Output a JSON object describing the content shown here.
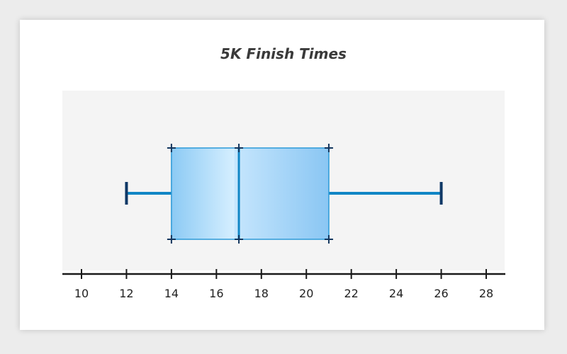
{
  "chart_data": {
    "type": "boxplot",
    "title": "5K Finish Times",
    "xlabel": "",
    "ylabel": "",
    "xlim": [
      10,
      28
    ],
    "ticks": [
      10,
      12,
      14,
      16,
      18,
      20,
      22,
      24,
      26,
      28
    ],
    "tick_labels": [
      "10",
      "12",
      "14",
      "16",
      "18",
      "20",
      "22",
      "24",
      "26",
      "28"
    ],
    "summary": {
      "min": 12,
      "q1": 14,
      "median": 17,
      "q3": 21,
      "max": 26
    },
    "grid": false,
    "legend": "none",
    "colors": {
      "box_fill": "#a9d4f5",
      "box_stroke": "#2b9ad8",
      "whisker": "#1186c5",
      "cap": "#0f3866",
      "marker": "#12355d",
      "plot_background": "#f4f4f4",
      "axis": "#1a1a1a"
    }
  }
}
